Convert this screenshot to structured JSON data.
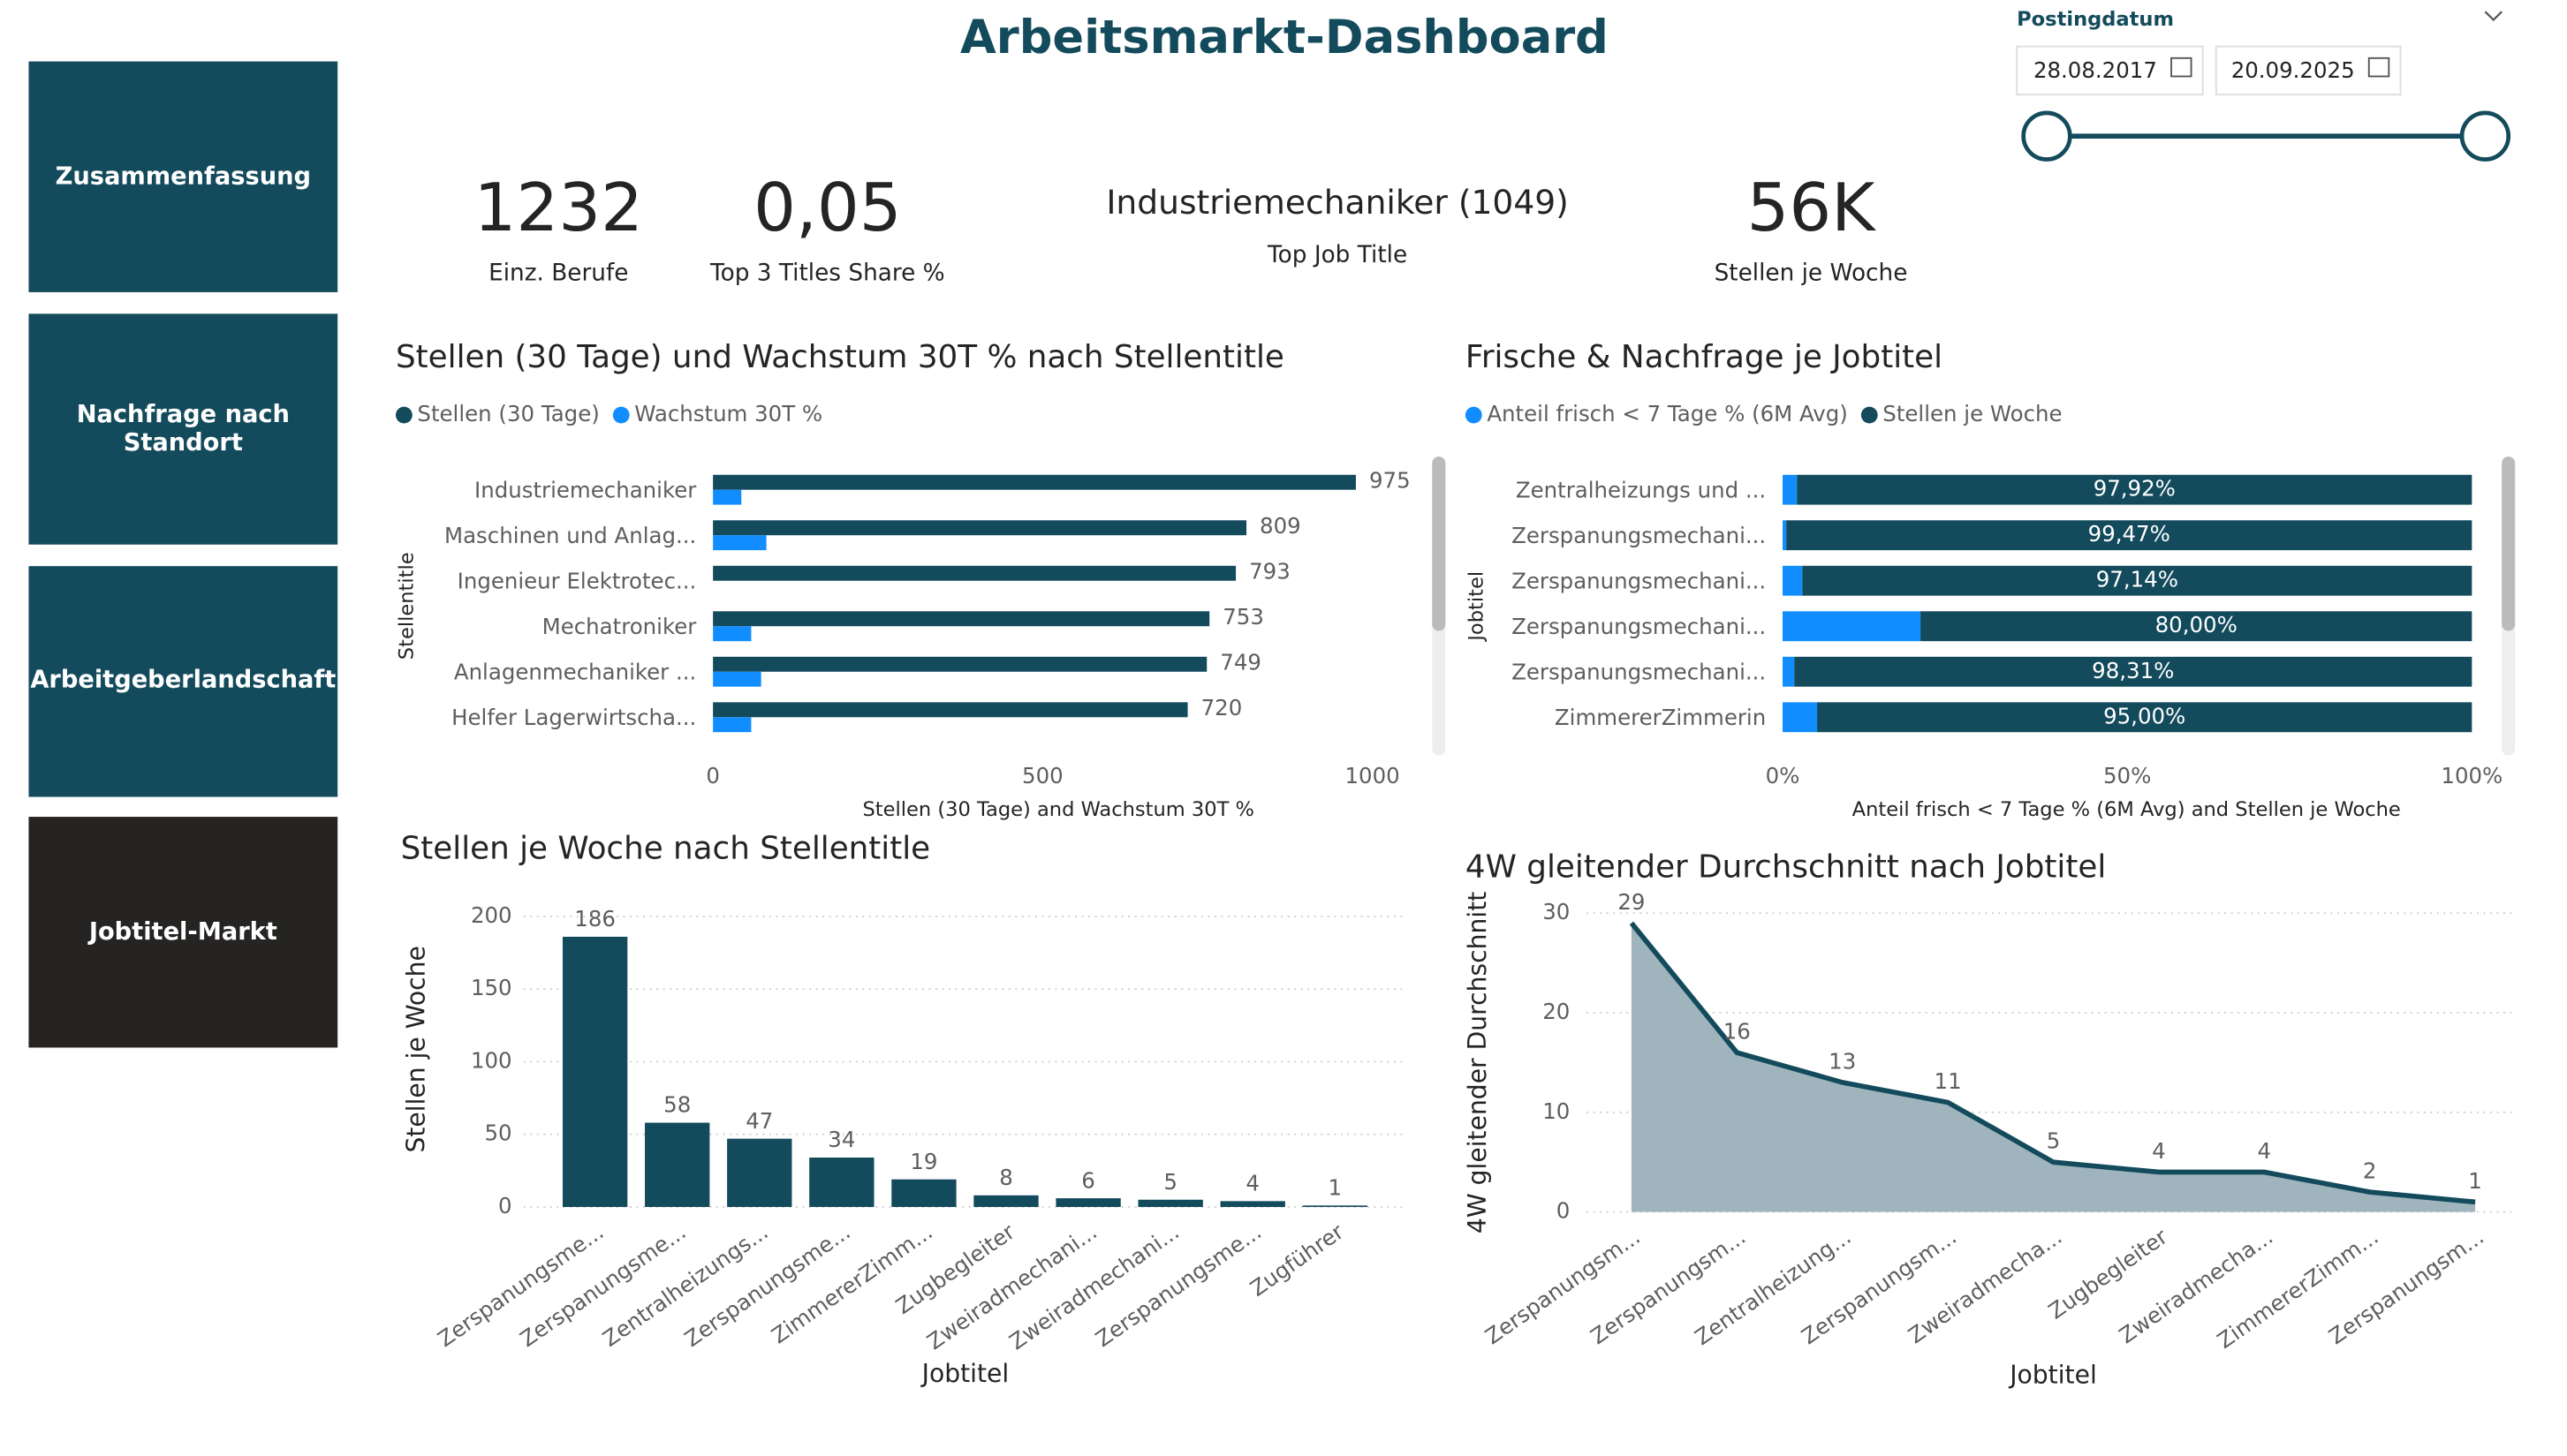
{
  "header": {
    "title": "Arbeitsmarkt-Dashboard"
  },
  "navigation": [
    "Zusammenfassung",
    "Nachfrage nach Standort",
    "Arbeitgeberlandschaft",
    "Jobtitel-Markt"
  ],
  "slicer": {
    "label": "Postingdatum",
    "start": "28.08.2017",
    "end": "20.09.2025"
  },
  "kpis": [
    {
      "value": "1232",
      "label": "Einz. Berufe"
    },
    {
      "value": "0,05",
      "label": "Top 3 Titles Share %"
    },
    {
      "value": "Industriemechaniker (1049)",
      "label": "Top Job Title"
    },
    {
      "value": "56K",
      "label": "Stellen je Woche"
    }
  ],
  "chart_data": [
    {
      "type": "hbar",
      "title": "Stellen (30 Tage) und Wachstum 30T % nach Stellentitle",
      "x_label": "Stellen (30 Tage) and Wachstum 30T %",
      "y_label": "Stellentitle",
      "legend": "top-left",
      "categories": [
        "Industriemechaniker",
        "Maschinen und Anlag...",
        "Ingenieur Elektrotec...",
        "Mechatroniker",
        "Anlagenmechaniker ...",
        "Helfer Lagerwirtscha..."
      ],
      "series": [
        {
          "name": "Stellen (30 Tage)",
          "color": "#134b5c",
          "show_labels": true,
          "values": [
            975,
            809,
            793,
            753,
            749,
            720
          ]
        },
        {
          "name": "Wachstum 30T %",
          "color": "#118dff",
          "values": [
            43,
            81,
            0,
            58,
            73,
            58
          ]
        }
      ],
      "xlim": [
        0,
        1000
      ],
      "xticks": [
        0,
        500,
        1000
      ],
      "grid": false
    },
    {
      "type": "stackedhbar",
      "title": "Frische & Nachfrage je Jobtitel",
      "x_label": "Anteil frisch < 7 Tage % (6M Avg) and Stellen je Woche",
      "y_label": "Jobtitel",
      "legend": "top-left",
      "categories": [
        "Zentralheizungs und ...",
        "Zerspanungsmechani...",
        "Zerspanungsmechani...",
        "Zerspanungsmechani...",
        "Zerspanungsmechani...",
        "ZimmererZimmerin"
      ],
      "series": [
        {
          "name": "Anteil frisch < 7 Tage % (6M Avg)",
          "color": "#118dff",
          "values": [
            2.08,
            0.53,
            2.86,
            20.0,
            1.69,
            5.0
          ]
        },
        {
          "name": "Stellen je Woche",
          "color": "#134b5c",
          "values": [
            97.92,
            99.47,
            97.14,
            80.0,
            98.31,
            95.0
          ],
          "value_labels": [
            "97,92%",
            "99,47%",
            "97,14%",
            "80,00%",
            "98,31%",
            "95,00%"
          ]
        }
      ],
      "xlim": [
        0,
        100
      ],
      "xticks": [
        {
          "value": 0,
          "label": "0%"
        },
        {
          "value": 50,
          "label": "50%"
        },
        {
          "value": 100,
          "label": "100%"
        }
      ],
      "grid": false
    },
    {
      "type": "bar",
      "title": "Stellen je Woche nach Stellentitle",
      "x_label": "Jobtitel",
      "y_label": "Stellen je Woche",
      "categories": [
        "Zerspanungsme...",
        "Zerspanungsme...",
        "Zentralheizungs...",
        "Zerspanungsme...",
        "ZimmererZimm...",
        "Zugbegleiter",
        "Zweiradmechani...",
        "Zweiradmechani...",
        "Zerspanungsme...",
        "Zugführer"
      ],
      "values": [
        186,
        58,
        47,
        34,
        19,
        8,
        6,
        5,
        4,
        1
      ],
      "color": "#134b5c",
      "ylim": [
        0,
        200
      ],
      "yticks": [
        0,
        50,
        100,
        150,
        200
      ],
      "grid": true
    },
    {
      "type": "area",
      "title": "4W gleitender Durchschnitt nach Jobtitel",
      "x_label": "Jobtitel",
      "y_label": "4W gleitender Durchschnitt",
      "categories": [
        "Zerspanungsm...",
        "Zerspanungsm...",
        "Zentralheizung...",
        "Zerspanungsm...",
        "Zweiradmecha...",
        "Zugbegleiter",
        "Zweiradmecha...",
        "ZimmererZimm...",
        "Zerspanungsm..."
      ],
      "values": [
        29,
        16,
        13,
        11,
        5,
        4,
        4,
        2,
        1
      ],
      "color": "#134b5c",
      "fill": "#9fb4bd",
      "ylim": [
        0,
        30
      ],
      "yticks": [
        0,
        10,
        20,
        30
      ],
      "grid": true
    }
  ]
}
